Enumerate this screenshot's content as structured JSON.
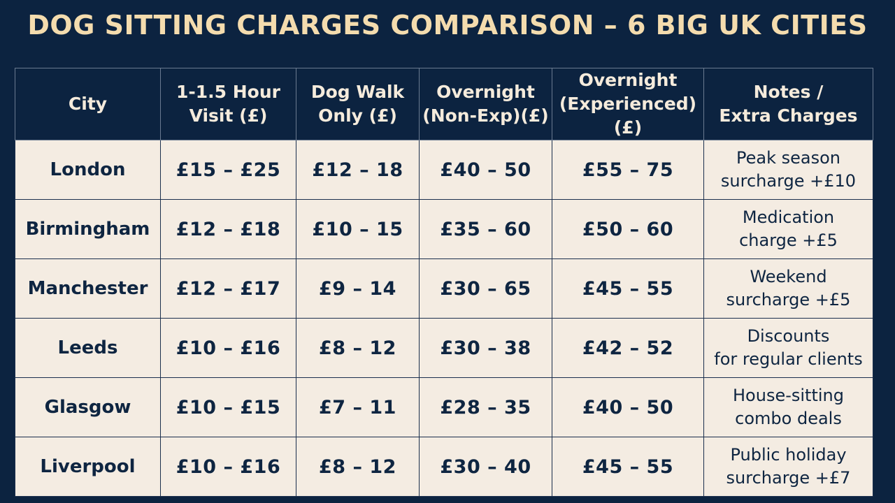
{
  "title": "DOG SITTING CHARGES COMPARISON – 6 BIG UK CITIES",
  "columns": [
    [
      "City"
    ],
    [
      "1-1.5 Hour",
      "Visit (£)"
    ],
    [
      "Dog Walk",
      "Only (£)"
    ],
    [
      "Overnight",
      "(Non-Exp)(£)"
    ],
    [
      "Overnight",
      "(Experienced)(£)"
    ],
    [
      "Notes /",
      "Extra Charges"
    ]
  ],
  "rows": [
    {
      "city": "London",
      "visit": "£15 – £25",
      "walk": "£12 – 18",
      "overnight_nonexp": "£40 – 50",
      "overnight_exp": "£55 – 75",
      "notes": "Peak season\nsurcharge +£10"
    },
    {
      "city": "Birmingham",
      "visit": "£12 – £18",
      "walk": "£10 – 15",
      "overnight_nonexp": "£35 – 60",
      "overnight_exp": "£50 – 60",
      "notes": "Medication\ncharge +£5"
    },
    {
      "city": "Manchester",
      "visit": "£12 – £17",
      "walk": "£9 – 14",
      "overnight_nonexp": "£30 – 65",
      "overnight_exp": "£45 – 55",
      "notes": "Weekend\nsurcharge +£5"
    },
    {
      "city": "Leeds",
      "visit": "£10 – £16",
      "walk": "£8 – 12",
      "overnight_nonexp": "£30 – 38",
      "overnight_exp": "£42 – 52",
      "notes": "Discounts\nfor regular clients"
    },
    {
      "city": "Glasgow",
      "visit": "£10 – £15",
      "walk": "£7 – 11",
      "overnight_nonexp": "£28 – 35",
      "overnight_exp": "£40 – 50",
      "notes": "House-sitting\ncombo deals"
    },
    {
      "city": "Liverpool",
      "visit": "£10 – £16",
      "walk": "£8 – 12",
      "overnight_nonexp": "£30 – 40",
      "overnight_exp": "£45 – 55",
      "notes": "Public holiday\nsurcharge +£7"
    }
  ]
}
